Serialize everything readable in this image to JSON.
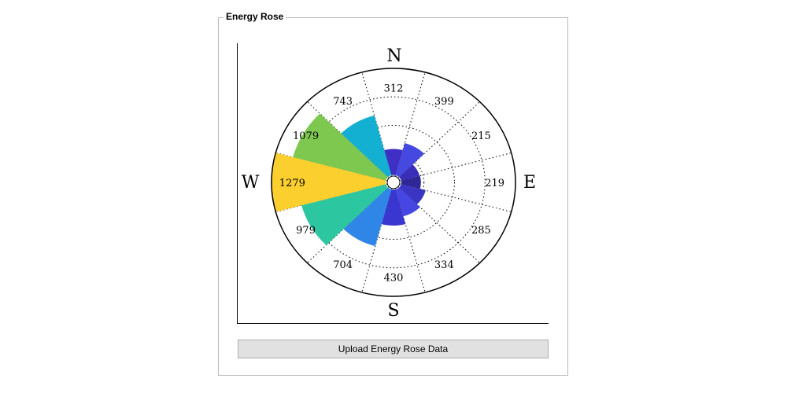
{
  "panel": {
    "title": "Energy Rose"
  },
  "button": {
    "upload_label": "Upload Energy Rose Data"
  },
  "chart_data": {
    "type": "polar-bar",
    "title": "",
    "directions": {
      "north": "N",
      "east": "E",
      "south": "S",
      "west": "W"
    },
    "sector_labels": [
      "312",
      "399",
      "215",
      "219",
      "285",
      "334",
      "430",
      "704",
      "979",
      "1279",
      "1079",
      "743"
    ],
    "sectors": [
      {
        "direction": "N",
        "value": 312,
        "color": "#3f2fc4"
      },
      {
        "direction": "NNE",
        "value": 399,
        "color": "#4549e0"
      },
      {
        "direction": "ENE",
        "value": 215,
        "color": "#3a2eb8"
      },
      {
        "direction": "E",
        "value": 219,
        "color": "#2e2896"
      },
      {
        "direction": "ESE",
        "value": 285,
        "color": "#3a35c2"
      },
      {
        "direction": "SSE",
        "value": 334,
        "color": "#4646e2"
      },
      {
        "direction": "S",
        "value": 430,
        "color": "#3a36d0"
      },
      {
        "direction": "SSW",
        "value": 704,
        "color": "#2f86e6"
      },
      {
        "direction": "WSW",
        "value": 979,
        "color": "#2cc6a0"
      },
      {
        "direction": "W",
        "value": 1279,
        "color": "#fbcf2e"
      },
      {
        "direction": "WNW",
        "value": 1079,
        "color": "#7ec850"
      },
      {
        "direction": "NNW",
        "value": 743,
        "color": "#14b0d2"
      }
    ],
    "radial_grid": "dotted",
    "angular_grid": "dotted"
  }
}
